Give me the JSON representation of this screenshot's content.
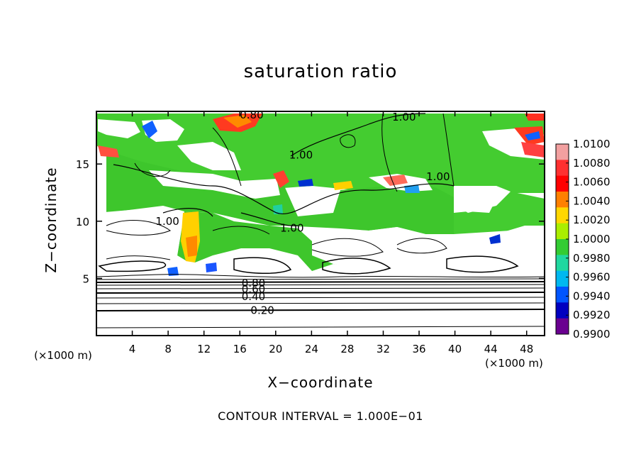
{
  "chart_data": {
    "type": "heatmap",
    "title": "saturation ratio",
    "xlabel": "X−coordinate",
    "ylabel": "Z−coordinate",
    "x_unit_label": "(×1000 m)",
    "x_ticks": [
      4,
      8,
      12,
      16,
      20,
      24,
      28,
      32,
      36,
      40,
      44,
      48
    ],
    "y_ticks": [
      5,
      10,
      15
    ],
    "xlim": [
      0,
      50
    ],
    "ylim": [
      0,
      19.6
    ],
    "contour_interval_text": "CONTOUR INTERVAL = 1.000E−01",
    "colorbar": {
      "labels": [
        "1.0100",
        "1.0080",
        "1.0060",
        "1.0040",
        "1.0020",
        "1.0000",
        "0.9980",
        "0.9960",
        "0.9940",
        "0.9920",
        "0.9900"
      ],
      "colors": [
        "#f2a0a0",
        "#ff3030",
        "#ff0000",
        "#ff8000",
        "#ffd700",
        "#aaee00",
        "#33cc33",
        "#20d8a0",
        "#00b8f0",
        "#0055ff",
        "#0000c0",
        "#6a0090"
      ]
    },
    "contour_labels": [
      {
        "text": "0.20",
        "x": 17.2,
        "y": 2.2
      },
      {
        "text": "0.40",
        "x": 16.2,
        "y": 3.4
      },
      {
        "text": "0.60",
        "x": 16.2,
        "y": 4.05
      },
      {
        "text": "0.80",
        "x": 16.2,
        "y": 4.6
      },
      {
        "text": "1.00",
        "x": 6.6,
        "y": 10.0
      },
      {
        "text": "1.00",
        "x": 20.5,
        "y": 9.4
      },
      {
        "text": "1.00",
        "x": 21.5,
        "y": 15.8
      },
      {
        "text": "1.00",
        "x": 36.8,
        "y": 13.9
      },
      {
        "text": "1.00",
        "x": 33.0,
        "y": 19.1
      },
      {
        "text": "0.80",
        "x": 16.0,
        "y": 19.3
      }
    ],
    "regions": {
      "subsaturated_fraction_below_z6": "contours 0.10–0.90",
      "saturated_layer": "green (~1.000) between z≈6 and z≈19"
    }
  }
}
